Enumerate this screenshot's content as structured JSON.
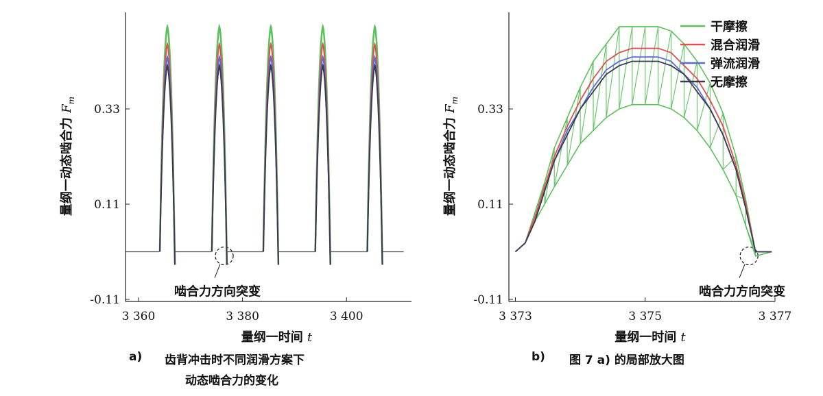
{
  "chart_data": [
    {
      "type": "line",
      "panel": "a)",
      "caption": [
        "齿背冲击时不同润滑方案下",
        "动态啮合力的变化"
      ],
      "xlabel": "量纲一时间 t",
      "ylabel": "量纲一动态啮合力 F_m",
      "xticks": [
        3360,
        3380,
        3400
      ],
      "xtick_labels": [
        "3 360",
        "3 380",
        "3 400"
      ],
      "yticks": [
        -0.11,
        0.11,
        0.33
      ],
      "ytick_labels": [
        "-0.11",
        "0.11",
        "0.33"
      ],
      "xlim": [
        3357.5,
        3412.5
      ],
      "ylim": [
        -0.11,
        0.55
      ],
      "baseline": 0.0,
      "pulses": {
        "starts": [
          3364.1,
          3374.1,
          3384.0,
          3394.0,
          3404.0,
          3413.9
        ],
        "width": 2.9,
        "peaks": {
          "干摩擦": 0.52,
          "混合润滑": 0.48,
          "弹流润滑": 0.45,
          "无摩擦": 0.43
        }
      },
      "flat_segments": [
        [
          3357.5,
          3364.0
        ],
        [
          3367.0,
          3374.0
        ],
        [
          3377.0,
          3384.0
        ],
        [
          3387.0,
          3394.0
        ],
        [
          3397.0,
          3404.0
        ],
        [
          3407.0,
          3411.0
        ]
      ],
      "annotation": {
        "text": "啮合力方向突变",
        "x": 3376.5,
        "y": 0.0
      }
    },
    {
      "type": "line",
      "panel": "b)",
      "caption": [
        "图 7 a) 的局部放大图"
      ],
      "xlabel": "量纲一时间 t",
      "ylabel": "量纲一动态啮合力 F_m",
      "xticks": [
        3373,
        3375,
        3377
      ],
      "xtick_labels": [
        "3 373",
        "3 375",
        "3 377"
      ],
      "yticks": [
        -0.11,
        0.11,
        0.33
      ],
      "ytick_labels": [
        "-0.11",
        "0.11",
        "0.33"
      ],
      "xlim": [
        3372.9,
        3377.0
      ],
      "ylim": [
        -0.11,
        0.55
      ],
      "legend": {
        "location": "top-right",
        "entries": [
          {
            "name": "干摩擦",
            "color": "#5cc05c"
          },
          {
            "name": "混合润滑",
            "color": "#e05050"
          },
          {
            "name": "弹流润滑",
            "color": "#5a6ad8"
          },
          {
            "name": "无摩擦",
            "color": "#3a3a4a"
          }
        ]
      },
      "series": [
        {
          "name": "干摩擦",
          "color": "#5cc05c",
          "x": [
            3373.0,
            3373.15,
            3373.3,
            3373.45,
            3373.6,
            3373.8,
            3374.0,
            3374.2,
            3374.4,
            3374.6,
            3374.8,
            3375.0,
            3375.2,
            3375.4,
            3375.6,
            3375.8,
            3376.0,
            3376.2,
            3376.4,
            3376.55,
            3376.7,
            3376.95
          ],
          "y": [
            0.0,
            0.02,
            0.09,
            0.16,
            0.24,
            0.31,
            0.38,
            0.44,
            0.48,
            0.52,
            0.52,
            0.52,
            0.52,
            0.51,
            0.48,
            0.44,
            0.39,
            0.32,
            0.22,
            0.12,
            0.0,
            0.0
          ],
          "y_low": [
            0.0,
            0.02,
            0.07,
            0.11,
            0.15,
            0.2,
            0.25,
            0.28,
            0.31,
            0.33,
            0.34,
            0.34,
            0.34,
            0.33,
            0.31,
            0.28,
            0.24,
            0.19,
            0.13,
            0.06,
            -0.01,
            0.0
          ]
        },
        {
          "name": "混合润滑",
          "color": "#e05050",
          "x": [
            3373.0,
            3373.15,
            3373.3,
            3373.45,
            3373.6,
            3373.8,
            3374.0,
            3374.2,
            3374.4,
            3374.6,
            3374.8,
            3375.0,
            3375.2,
            3375.4,
            3375.6,
            3375.8,
            3376.0,
            3376.2,
            3376.4,
            3376.55,
            3376.7,
            3376.95
          ],
          "y": [
            0.0,
            0.02,
            0.08,
            0.15,
            0.22,
            0.29,
            0.35,
            0.4,
            0.44,
            0.46,
            0.47,
            0.47,
            0.47,
            0.46,
            0.43,
            0.4,
            0.35,
            0.29,
            0.2,
            0.11,
            0.0,
            0.0
          ]
        },
        {
          "name": "弹流润滑",
          "color": "#5a6ad8",
          "x": [
            3373.0,
            3373.15,
            3373.3,
            3373.45,
            3373.6,
            3373.8,
            3374.0,
            3374.2,
            3374.4,
            3374.6,
            3374.8,
            3375.0,
            3375.2,
            3375.4,
            3375.6,
            3375.8,
            3376.0,
            3376.2,
            3376.4,
            3376.55,
            3376.7,
            3376.95
          ],
          "y": [
            0.0,
            0.02,
            0.07,
            0.14,
            0.21,
            0.28,
            0.33,
            0.38,
            0.42,
            0.44,
            0.45,
            0.45,
            0.45,
            0.44,
            0.41,
            0.38,
            0.33,
            0.27,
            0.19,
            0.1,
            0.0,
            0.0
          ]
        },
        {
          "name": "无摩擦",
          "color": "#3a3a4a",
          "x": [
            3373.0,
            3373.15,
            3373.3,
            3373.45,
            3373.6,
            3373.8,
            3374.0,
            3374.2,
            3374.4,
            3374.6,
            3374.8,
            3375.0,
            3375.2,
            3375.4,
            3375.6,
            3375.8,
            3376.0,
            3376.2,
            3376.4,
            3376.55,
            3376.7,
            3376.95
          ],
          "y": [
            0.0,
            0.02,
            0.07,
            0.14,
            0.21,
            0.27,
            0.33,
            0.37,
            0.41,
            0.43,
            0.44,
            0.44,
            0.44,
            0.43,
            0.41,
            0.37,
            0.33,
            0.27,
            0.19,
            0.1,
            0.0,
            0.0
          ]
        }
      ],
      "annotation": {
        "text": "啮合力方向突变",
        "x": 3376.6,
        "y": 0.0
      }
    }
  ]
}
